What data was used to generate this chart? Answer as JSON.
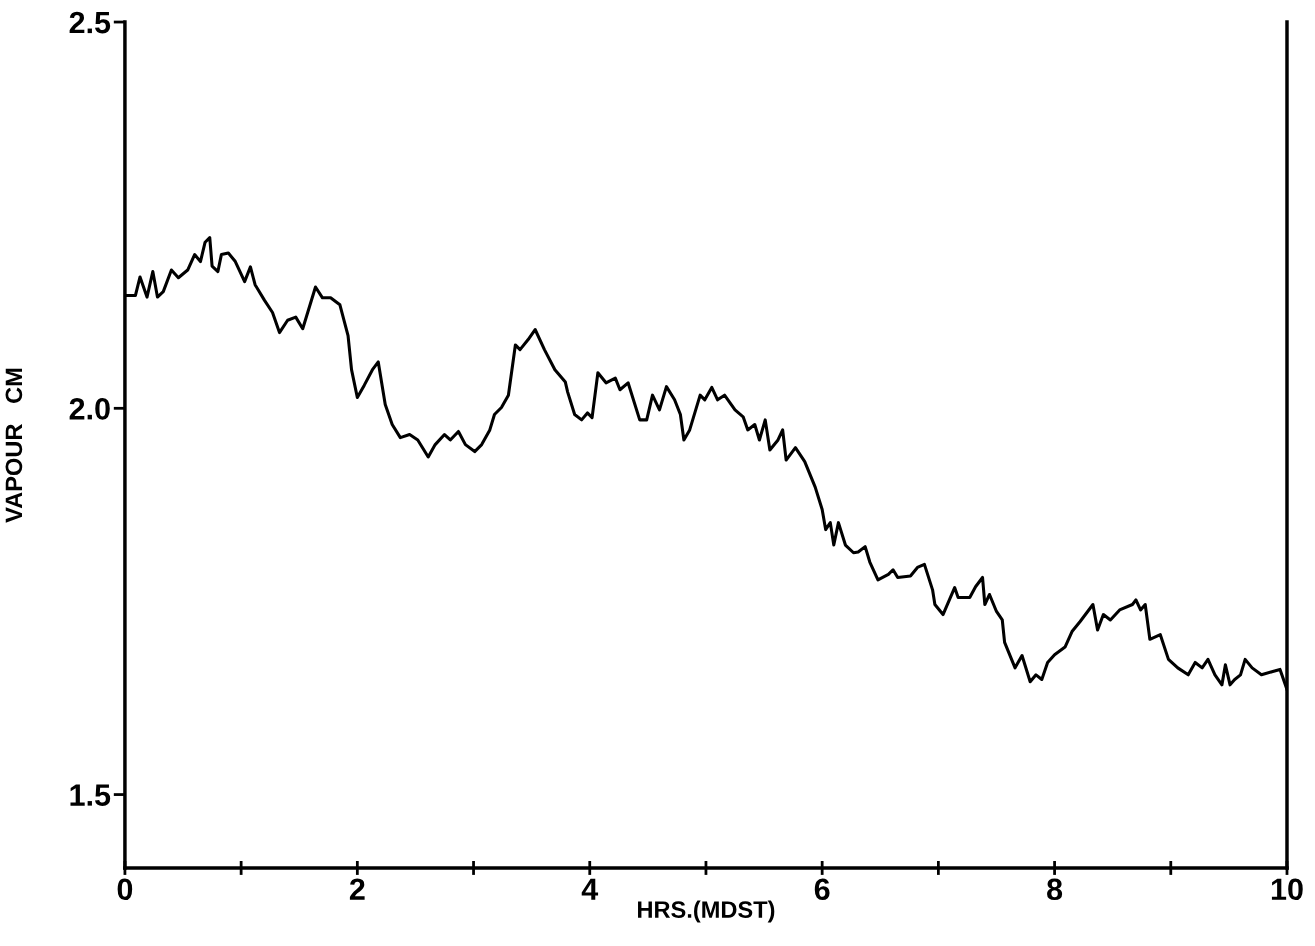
{
  "chart_data": {
    "type": "line",
    "xlabel": "HRS.(MDST)",
    "ylabel": "VAPOUR   CM",
    "x": [
      0.02,
      0.09,
      0.13,
      0.19,
      0.24,
      0.28,
      0.33,
      0.4,
      0.46,
      0.54,
      0.6,
      0.65,
      0.69,
      0.73,
      0.75,
      0.8,
      0.83,
      0.89,
      0.95,
      1.03,
      1.08,
      1.12,
      1.2,
      1.27,
      1.33,
      1.4,
      1.47,
      1.53,
      1.64,
      1.7,
      1.77,
      1.85,
      1.92,
      1.95,
      2.0,
      2.06,
      2.13,
      2.18,
      2.24,
      2.3,
      2.37,
      2.45,
      2.52,
      2.61,
      2.67,
      2.75,
      2.8,
      2.87,
      2.93,
      3.01,
      3.07,
      3.14,
      3.18,
      3.24,
      3.3,
      3.36,
      3.4,
      3.47,
      3.53,
      3.61,
      3.7,
      3.79,
      3.81,
      3.87,
      3.93,
      3.98,
      4.02,
      4.07,
      4.14,
      4.22,
      4.26,
      4.33,
      4.43,
      4.49,
      4.54,
      4.6,
      4.66,
      4.73,
      4.78,
      4.81,
      4.86,
      4.95,
      4.99,
      5.05,
      5.1,
      5.16,
      5.25,
      5.32,
      5.36,
      5.42,
      5.46,
      5.51,
      5.55,
      5.62,
      5.66,
      5.69,
      5.77,
      5.85,
      5.94,
      6.0,
      6.03,
      6.07,
      6.1,
      6.14,
      6.2,
      6.27,
      6.31,
      6.37,
      6.41,
      6.48,
      6.57,
      6.61,
      6.65,
      6.76,
      6.82,
      6.88,
      6.95,
      6.97,
      7.04,
      7.14,
      7.17,
      7.27,
      7.32,
      7.38,
      7.4,
      7.44,
      7.5,
      7.55,
      7.57,
      7.66,
      7.72,
      7.79,
      7.84,
      7.89,
      7.94,
      8.0,
      8.09,
      8.15,
      8.22,
      8.33,
      8.37,
      8.42,
      8.48,
      8.56,
      8.67,
      8.7,
      8.74,
      8.78,
      8.82,
      8.91,
      8.98,
      9.06,
      9.15,
      9.21,
      9.27,
      9.32,
      9.38,
      9.44,
      9.47,
      9.51,
      9.55,
      9.6,
      9.64,
      9.7,
      9.78,
      9.87,
      9.94,
      10.0
    ],
    "series": [
      {
        "color": "#000000",
        "values": [
          2.146,
          2.146,
          2.17,
          2.144,
          2.177,
          2.144,
          2.151,
          2.179,
          2.169,
          2.179,
          2.199,
          2.19,
          2.215,
          2.221,
          2.184,
          2.177,
          2.199,
          2.201,
          2.19,
          2.164,
          2.183,
          2.16,
          2.14,
          2.124,
          2.098,
          2.114,
          2.118,
          2.103,
          2.157,
          2.143,
          2.143,
          2.134,
          2.094,
          2.05,
          2.014,
          2.03,
          2.05,
          2.06,
          2.005,
          1.979,
          1.962,
          1.966,
          1.959,
          1.937,
          1.953,
          1.966,
          1.959,
          1.97,
          1.953,
          1.944,
          1.953,
          1.972,
          1.992,
          2.001,
          2.017,
          2.082,
          2.076,
          2.089,
          2.102,
          2.076,
          2.05,
          2.034,
          2.021,
          1.992,
          1.985,
          1.994,
          1.988,
          2.046,
          2.033,
          2.039,
          2.024,
          2.033,
          1.985,
          1.985,
          2.017,
          1.998,
          2.028,
          2.011,
          1.992,
          1.959,
          1.972,
          2.017,
          2.011,
          2.027,
          2.011,
          2.017,
          1.998,
          1.989,
          1.972,
          1.979,
          1.959,
          1.985,
          1.946,
          1.959,
          1.972,
          1.933,
          1.949,
          1.931,
          1.898,
          1.869,
          1.843,
          1.852,
          1.823,
          1.852,
          1.823,
          1.813,
          1.814,
          1.821,
          1.801,
          1.778,
          1.785,
          1.791,
          1.781,
          1.783,
          1.794,
          1.798,
          1.765,
          1.746,
          1.733,
          1.768,
          1.755,
          1.755,
          1.769,
          1.781,
          1.746,
          1.759,
          1.737,
          1.726,
          1.697,
          1.664,
          1.68,
          1.646,
          1.655,
          1.649,
          1.671,
          1.681,
          1.691,
          1.711,
          1.724,
          1.746,
          1.713,
          1.733,
          1.726,
          1.739,
          1.746,
          1.752,
          1.739,
          1.746,
          1.701,
          1.707,
          1.675,
          1.664,
          1.655,
          1.671,
          1.664,
          1.675,
          1.655,
          1.642,
          1.668,
          1.642,
          1.649,
          1.655,
          1.675,
          1.664,
          1.655,
          1.659,
          1.662,
          1.636
        ]
      }
    ],
    "xlim": [
      0,
      10
    ],
    "xticks": [
      0,
      {
        "value": 1,
        "label": null
      },
      2,
      {
        "value": 3,
        "label": null
      },
      4,
      {
        "value": 5,
        "label": null
      },
      6,
      {
        "value": 7,
        "label": null
      },
      8,
      {
        "value": 9,
        "label": null
      },
      10
    ],
    "ylim": [
      1.405,
      2.5
    ],
    "yticks": [
      1.5,
      {
        "value": 2.0,
        "label": "2.0"
      },
      2.5
    ],
    "grid": false,
    "legend": false,
    "marker": "none",
    "line_style": "solid"
  }
}
